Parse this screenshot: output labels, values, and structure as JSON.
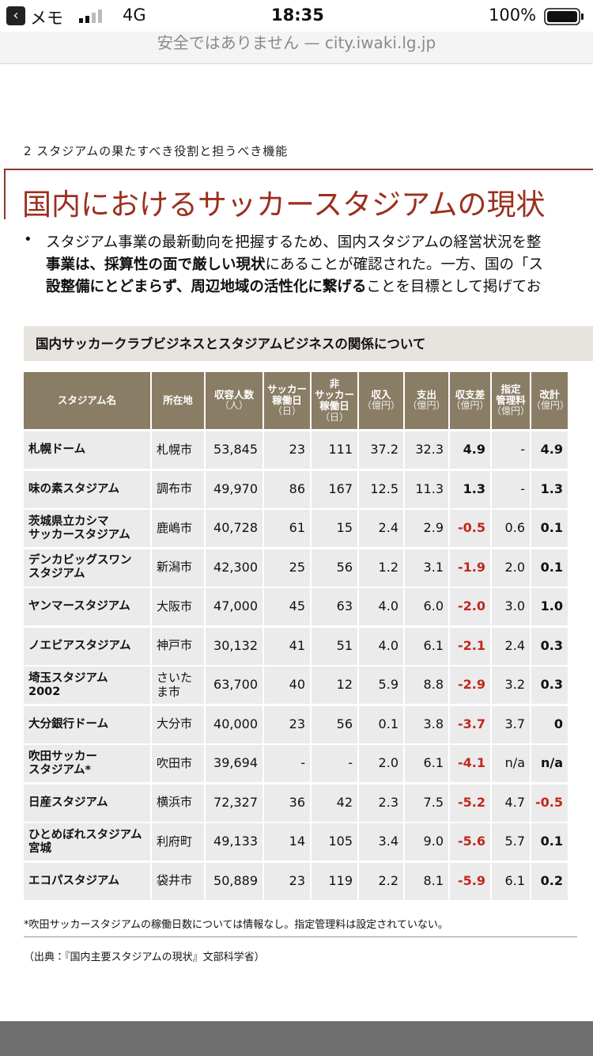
{
  "status_bar": {
    "back_app": "メモ",
    "network": "4G",
    "time": "18:35",
    "battery": "100%"
  },
  "url_bar": {
    "text": "安全ではありません — city.iwaki.lg.jp"
  },
  "document": {
    "section": "2 スタジアムの果たすべき役割と担うべき機能",
    "title": "国内におけるサッカースタジアムの現状",
    "bullet": {
      "marker": "•",
      "lines": [
        [
          {
            "text": "スタジアム事業の最新動向を把握するため、国内スタジアムの経営状況を整",
            "bold": false
          }
        ],
        [
          {
            "text": "事業は、採算性の面で厳しい現状",
            "bold": true
          },
          {
            "text": "にあることが確認された。一方、国の「ス",
            "bold": false
          }
        ],
        [
          {
            "text": "設整備にとどまらず、周辺地域の活性化に繋げる",
            "bold": true
          },
          {
            "text": "ことを目標として掲げてお",
            "bold": false
          }
        ]
      ]
    },
    "table": {
      "title": "国内サッカークラブビジネスとスタジアムビジネスの関係について",
      "headers": [
        {
          "label": [
            "スタジアム名"
          ]
        },
        {
          "label": [
            "所在地"
          ]
        },
        {
          "label": [
            "収容人数"
          ],
          "unit": "（人）"
        },
        {
          "label": [
            "サッカー",
            "稼働日"
          ],
          "unit": "（日）"
        },
        {
          "label": [
            "非",
            "サッカー",
            "稼働日"
          ],
          "unit": "（日）"
        },
        {
          "label": [
            "収入"
          ],
          "unit": "（億円）"
        },
        {
          "label": [
            "支出"
          ],
          "unit": "（億円）"
        },
        {
          "label": [
            "収支差"
          ],
          "unit": "（億円）"
        },
        {
          "label": [
            "指定",
            "管理料"
          ],
          "unit": "（億円）"
        },
        {
          "label": [
            "改計"
          ],
          "unit": "（億円）"
        }
      ],
      "rows": [
        [
          [
            "札幌ドーム"
          ],
          "札幌市",
          "53,845",
          "23",
          "111",
          "37.2",
          "32.3",
          "4.9",
          "-",
          "4.9"
        ],
        [
          [
            "味の素スタジアム"
          ],
          "調布市",
          "49,970",
          "86",
          "167",
          "12.5",
          "11.3",
          "1.3",
          "-",
          "1.3"
        ],
        [
          [
            "茨城県立カシマ",
            "サッカースタジアム"
          ],
          "鹿嶋市",
          "40,728",
          "61",
          "15",
          "2.4",
          "2.9",
          "-0.5",
          "0.6",
          "0.1"
        ],
        [
          [
            "デンカビッグスワン",
            "スタジアム"
          ],
          "新潟市",
          "42,300",
          "25",
          "56",
          "1.2",
          "3.1",
          "-1.9",
          "2.0",
          "0.1"
        ],
        [
          [
            "ヤンマースタジアム"
          ],
          "大阪市",
          "47,000",
          "45",
          "63",
          "4.0",
          "6.0",
          "-2.0",
          "3.0",
          "1.0"
        ],
        [
          [
            "ノエビアスタジアム"
          ],
          "神戸市",
          "30,132",
          "41",
          "51",
          "4.0",
          "6.1",
          "-2.1",
          "2.4",
          "0.3"
        ],
        [
          [
            "埼玉スタジアム",
            "2002"
          ],
          "さいたま市",
          "63,700",
          "40",
          "12",
          "5.9",
          "8.8",
          "-2.9",
          "3.2",
          "0.3"
        ],
        [
          [
            "大分銀行ドーム"
          ],
          "大分市",
          "40,000",
          "23",
          "56",
          "0.1",
          "3.8",
          "-3.7",
          "3.7",
          "0"
        ],
        [
          [
            "吹田サッカー",
            "スタジアム*"
          ],
          "吹田市",
          "39,694",
          "-",
          "-",
          "2.0",
          "6.1",
          "-4.1",
          "n/a",
          "n/a"
        ],
        [
          [
            "日産スタジアム"
          ],
          "横浜市",
          "72,327",
          "36",
          "42",
          "2.3",
          "7.5",
          "-5.2",
          "4.7",
          "-0.5"
        ],
        [
          [
            "ひとめぼれスタジアム",
            "宮城"
          ],
          "利府町",
          "49,133",
          "14",
          "105",
          "3.4",
          "9.0",
          "-5.6",
          "5.7",
          "0.1"
        ],
        [
          [
            "エコパスタジアム"
          ],
          "袋井市",
          "50,889",
          "23",
          "119",
          "2.2",
          "8.1",
          "-5.9",
          "6.1",
          "0.2"
        ]
      ],
      "footnote": "*吹田サッカースタジアムの稼働日数については情報なし。指定管理料は設定されていない。",
      "source": "（出典：『国内主要スタジアムの現状』文部科学省）"
    }
  }
}
